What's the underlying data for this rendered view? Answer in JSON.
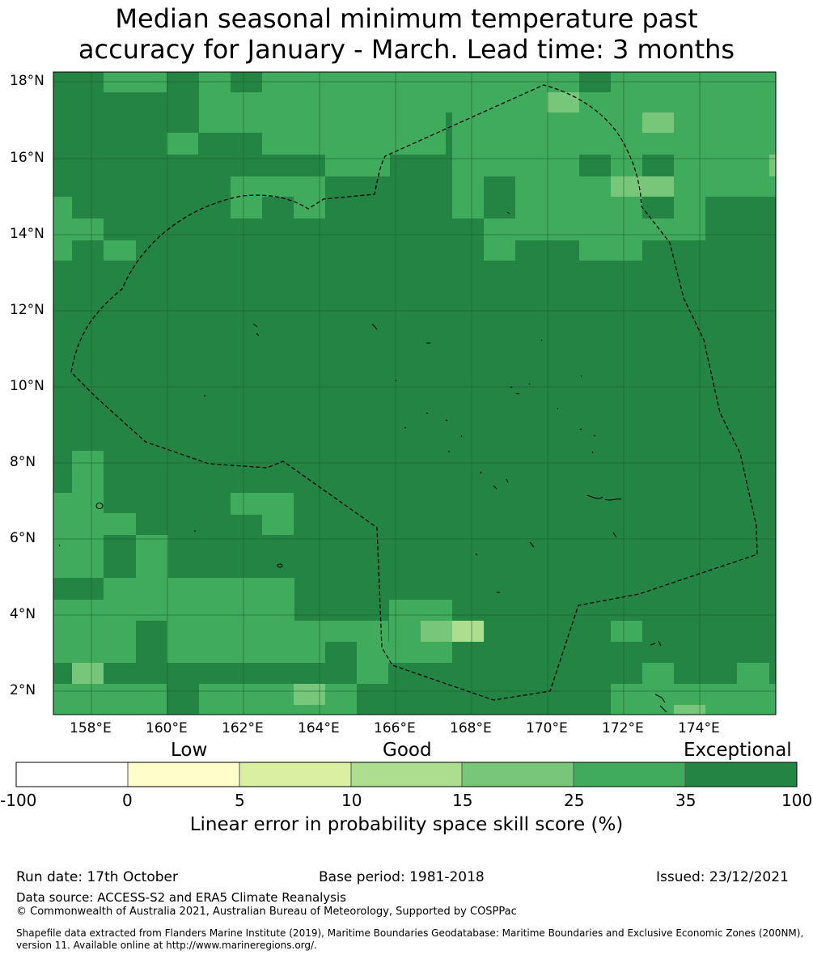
{
  "title": {
    "line1": "Median seasonal minimum temperature past",
    "line2": "accuracy for January - March. Lead time: 3 months"
  },
  "map": {
    "lat_labels": [
      "18°N",
      "16°N",
      "14°N",
      "12°N",
      "10°N",
      "8°N",
      "6°N",
      "4°N",
      "2°N"
    ],
    "lon_labels": [
      "158°E",
      "160°E",
      "162°E",
      "164°E",
      "166°E",
      "168°E",
      "170°E",
      "172°E",
      "174°E"
    ],
    "grid": true,
    "colors": {
      "c0": "#ffffcc",
      "c1": "#d9f0a3",
      "c2": "#addd8e",
      "c3": "#78c679",
      "c4": "#41ab5d",
      "c5": "#238443",
      "c_neg": "#ffffff"
    }
  },
  "colorbar": {
    "category_labels": [
      "Low",
      "Good",
      "Exceptional"
    ],
    "tick_labels": [
      "-100",
      "0",
      "5",
      "10",
      "15",
      "25",
      "35",
      "100"
    ],
    "colors": [
      "#ffffff",
      "#ffffcc",
      "#d9f0a3",
      "#addd8e",
      "#78c679",
      "#41ab5d",
      "#238443"
    ],
    "caption": "Linear error in probability space skill score (%)"
  },
  "footer": {
    "run_date": "Run date: 17th October",
    "base_period": "Base period: 1981-2018",
    "issued": "Issued: 23/12/2021",
    "data_source": "Data source: ACCESS-S2 and ERA5 Climate Reanalysis",
    "copyright": "© Commonwealth of Australia 2021, Australian Bureau of Meteorology, Supported by COSPPac",
    "shapefile_line1": "Shapefile data extracted from Flanders Marine Institute (2019), Maritime Boundaries Geodatabase: Maritime Boundaries and Exclusive Economic Zones (200NM),",
    "shapefile_line2": "version 11. Available online at http://www.marineregions.org/."
  }
}
